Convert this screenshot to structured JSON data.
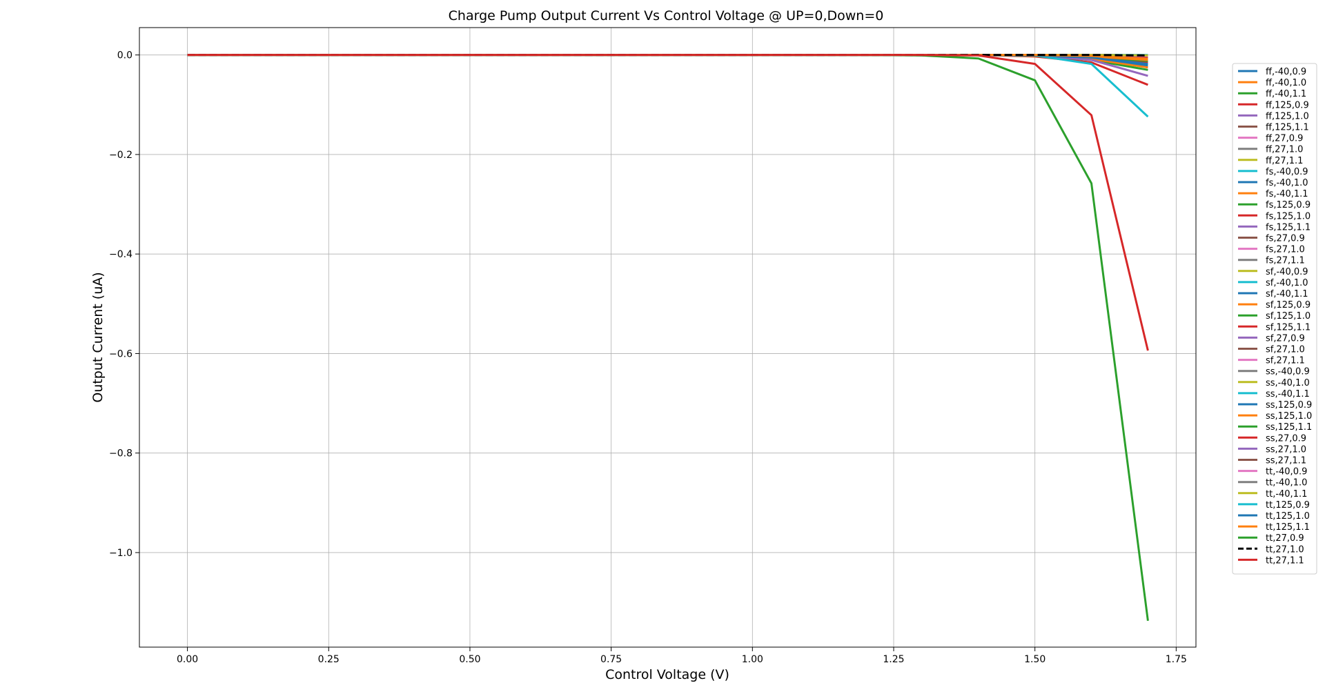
{
  "chart_data": {
    "type": "line",
    "title": "Charge Pump Output Current Vs Control Voltage @ UP=0,Down=0",
    "xlabel": "Control Voltage (V)",
    "ylabel": "Output Current (uA)",
    "xlim": [
      -0.085,
      1.785
    ],
    "ylim": [
      -1.19,
      0.055
    ],
    "xticks": [
      0.0,
      0.25,
      0.5,
      0.75,
      1.0,
      1.25,
      1.5,
      1.75
    ],
    "yticks": [
      0.0,
      -0.2,
      -0.4,
      -0.6,
      -0.8,
      -1.0
    ],
    "xtick_labels": [
      "0.00",
      "0.25",
      "0.50",
      "0.75",
      "1.00",
      "1.25",
      "1.50",
      "1.75"
    ],
    "ytick_labels": [
      "0.0",
      "−0.2",
      "−0.4",
      "−0.6",
      "−0.8",
      "−1.0"
    ],
    "grid": true,
    "legend_position": "right, outside plot",
    "x": [
      0.0,
      0.1,
      0.2,
      0.3,
      0.4,
      0.5,
      0.6,
      0.7,
      0.8,
      0.9,
      1.0,
      1.1,
      1.2,
      1.3,
      1.4,
      1.5,
      1.6,
      1.7
    ],
    "series": [
      {
        "name": "ff,-40,0.9",
        "color": "#1f77b4",
        "dash": "solid",
        "values": [
          0,
          0,
          0,
          0,
          0,
          0,
          0,
          0,
          0,
          0,
          0,
          0,
          0,
          0,
          0,
          0,
          -0.001,
          -0.004
        ]
      },
      {
        "name": "ff,-40,1.0",
        "color": "#ff7f0e",
        "dash": "solid",
        "values": [
          0,
          0,
          0,
          0,
          0,
          0,
          0,
          0,
          0,
          0,
          0,
          0,
          0,
          0,
          0,
          0,
          0,
          -0.002
        ]
      },
      {
        "name": "ff,-40,1.1",
        "color": "#2ca02c",
        "dash": "solid",
        "values": [
          0,
          0,
          0,
          0,
          0,
          0,
          0,
          0,
          0,
          0,
          0,
          0,
          0,
          0,
          0,
          0,
          0,
          -0.001
        ]
      },
      {
        "name": "ff,125,0.9",
        "color": "#d62728",
        "dash": "solid",
        "values": [
          0,
          0,
          0,
          0,
          0,
          0,
          0,
          0,
          0,
          0,
          0,
          0,
          0,
          0,
          0,
          -0.003,
          -0.015,
          -0.06
        ]
      },
      {
        "name": "ff,125,1.0",
        "color": "#9467bd",
        "dash": "solid",
        "values": [
          0,
          0,
          0,
          0,
          0,
          0,
          0,
          0,
          0,
          0,
          0,
          0,
          0,
          0,
          0,
          -0.001,
          -0.006,
          -0.025
        ]
      },
      {
        "name": "ff,125,1.1",
        "color": "#8c564b",
        "dash": "solid",
        "values": [
          0,
          0,
          0,
          0,
          0,
          0,
          0,
          0,
          0,
          0,
          0,
          0,
          0,
          0,
          0,
          0,
          -0.003,
          -0.012
        ]
      },
      {
        "name": "ff,27,0.9",
        "color": "#e377c2",
        "dash": "solid",
        "values": [
          0,
          0,
          0,
          0,
          0,
          0,
          0,
          0,
          0,
          0,
          0,
          0,
          0,
          0,
          0,
          0,
          -0.002,
          -0.008
        ]
      },
      {
        "name": "ff,27,1.0",
        "color": "#7f7f7f",
        "dash": "solid",
        "values": [
          0,
          0,
          0,
          0,
          0,
          0,
          0,
          0,
          0,
          0,
          0,
          0,
          0,
          0,
          0,
          0,
          -0.001,
          -0.005
        ]
      },
      {
        "name": "ff,27,1.1",
        "color": "#bcbd22",
        "dash": "solid",
        "values": [
          0,
          0,
          0,
          0,
          0,
          0,
          0,
          0,
          0,
          0,
          0,
          0,
          0,
          0,
          0,
          0,
          0,
          -0.003
        ]
      },
      {
        "name": "fs,-40,0.9",
        "color": "#17becf",
        "dash": "solid",
        "values": [
          0,
          0,
          0,
          0,
          0,
          0,
          0,
          0,
          0,
          0,
          0,
          0,
          0,
          0,
          0,
          0,
          0,
          -0.002
        ]
      },
      {
        "name": "fs,-40,1.0",
        "color": "#1f77b4",
        "dash": "solid",
        "values": [
          0,
          0,
          0,
          0,
          0,
          0,
          0,
          0,
          0,
          0,
          0,
          0,
          0,
          0,
          0,
          0,
          0,
          -0.001
        ]
      },
      {
        "name": "fs,-40,1.1",
        "color": "#ff7f0e",
        "dash": "solid",
        "values": [
          0,
          0,
          0,
          0,
          0,
          0,
          0,
          0,
          0,
          0,
          0,
          0,
          0,
          0,
          0,
          0,
          0,
          -0.001
        ]
      },
      {
        "name": "fs,125,0.9",
        "color": "#2ca02c",
        "dash": "solid",
        "values": [
          0,
          0,
          0,
          0,
          0,
          0,
          0,
          0,
          0,
          0,
          0,
          0,
          0,
          0,
          0,
          -0.002,
          -0.01,
          -0.03
        ]
      },
      {
        "name": "fs,125,1.0",
        "color": "#d62728",
        "dash": "solid",
        "values": [
          0,
          0,
          0,
          0,
          0,
          0,
          0,
          0,
          0,
          0,
          0,
          0,
          0,
          0,
          0,
          -0.001,
          -0.005,
          -0.015
        ]
      },
      {
        "name": "fs,125,1.1",
        "color": "#9467bd",
        "dash": "solid",
        "values": [
          0,
          0,
          0,
          0,
          0,
          0,
          0,
          0,
          0,
          0,
          0,
          0,
          0,
          0,
          0,
          0,
          -0.002,
          -0.008
        ]
      },
      {
        "name": "fs,27,0.9",
        "color": "#8c564b",
        "dash": "solid",
        "values": [
          0,
          0,
          0,
          0,
          0,
          0,
          0,
          0,
          0,
          0,
          0,
          0,
          0,
          0,
          0,
          0,
          -0.001,
          -0.004
        ]
      },
      {
        "name": "fs,27,1.0",
        "color": "#e377c2",
        "dash": "solid",
        "values": [
          0,
          0,
          0,
          0,
          0,
          0,
          0,
          0,
          0,
          0,
          0,
          0,
          0,
          0,
          0,
          0,
          0,
          -0.002
        ]
      },
      {
        "name": "fs,27,1.1",
        "color": "#7f7f7f",
        "dash": "solid",
        "values": [
          0,
          0,
          0,
          0,
          0,
          0,
          0,
          0,
          0,
          0,
          0,
          0,
          0,
          0,
          0,
          0,
          0,
          -0.001
        ]
      },
      {
        "name": "sf,-40,0.9",
        "color": "#bcbd22",
        "dash": "solid",
        "values": [
          0,
          0,
          0,
          0,
          0,
          0,
          0,
          0,
          0,
          0,
          0,
          0,
          0,
          0,
          0,
          0,
          0,
          -0.002
        ]
      },
      {
        "name": "sf,-40,1.0",
        "color": "#17becf",
        "dash": "solid",
        "values": [
          0,
          0,
          0,
          0,
          0,
          0,
          0,
          0,
          0,
          0,
          0,
          0,
          0,
          0,
          0,
          0,
          0,
          -0.001
        ]
      },
      {
        "name": "sf,-40,1.1",
        "color": "#1f77b4",
        "dash": "solid",
        "values": [
          0,
          0,
          0,
          0,
          0,
          0,
          0,
          0,
          0,
          0,
          0,
          0,
          0,
          0,
          0,
          0,
          0,
          -0.001
        ]
      },
      {
        "name": "sf,125,0.9",
        "color": "#ff7f0e",
        "dash": "solid",
        "values": [
          0,
          0,
          0,
          0,
          0,
          0,
          0,
          0,
          0,
          0,
          0,
          0,
          0,
          0,
          0,
          -0.002,
          -0.008,
          -0.025
        ]
      },
      {
        "name": "sf,125,1.0",
        "color": "#2ca02c",
        "dash": "solid",
        "values": [
          0,
          0,
          0,
          0,
          0,
          0,
          0,
          0,
          0,
          0,
          0,
          0,
          0,
          0,
          0,
          -0.001,
          -0.004,
          -0.012
        ]
      },
      {
        "name": "sf,125,1.1",
        "color": "#d62728",
        "dash": "solid",
        "values": [
          0,
          0,
          0,
          0,
          0,
          0,
          0,
          0,
          0,
          0,
          0,
          0,
          0,
          0,
          0,
          0,
          -0.002,
          -0.006
        ]
      },
      {
        "name": "sf,27,0.9",
        "color": "#9467bd",
        "dash": "solid",
        "values": [
          0,
          0,
          0,
          0,
          0,
          0,
          0,
          0,
          0,
          0,
          0,
          0,
          0,
          0,
          0,
          -0.001,
          -0.01,
          -0.042
        ]
      },
      {
        "name": "sf,27,1.0",
        "color": "#8c564b",
        "dash": "solid",
        "values": [
          0,
          0,
          0,
          0,
          0,
          0,
          0,
          0,
          0,
          0,
          0,
          0,
          0,
          0,
          0,
          0,
          -0.003,
          -0.01
        ]
      },
      {
        "name": "sf,27,1.1",
        "color": "#e377c2",
        "dash": "solid",
        "values": [
          0,
          0,
          0,
          0,
          0,
          0,
          0,
          0,
          0,
          0,
          0,
          0,
          0,
          0,
          0,
          0,
          -0.001,
          -0.005
        ]
      },
      {
        "name": "ss,-40,0.9",
        "color": "#7f7f7f",
        "dash": "solid",
        "values": [
          0,
          0,
          0,
          0,
          0,
          0,
          0,
          0,
          0,
          0,
          0,
          0,
          0,
          0,
          0,
          0,
          0,
          -0.001
        ]
      },
      {
        "name": "ss,-40,1.0",
        "color": "#bcbd22",
        "dash": "solid",
        "values": [
          0,
          0,
          0,
          0,
          0,
          0,
          0,
          0,
          0,
          0,
          0,
          0,
          0,
          0,
          0,
          0,
          0,
          -0.001
        ]
      },
      {
        "name": "ss,-40,1.1",
        "color": "#17becf",
        "dash": "solid",
        "values": [
          0,
          0,
          0,
          0,
          0,
          0,
          0,
          0,
          0,
          0,
          0,
          0,
          0,
          0,
          0,
          0,
          0,
          0
        ]
      },
      {
        "name": "ss,125,0.9",
        "color": "#1f77b4",
        "dash": "solid",
        "values": [
          0,
          0,
          0,
          0,
          0,
          0,
          0,
          0,
          0,
          0,
          0,
          0,
          0,
          0,
          0,
          -0.001,
          -0.005,
          -0.018
        ]
      },
      {
        "name": "ss,125,1.0",
        "color": "#ff7f0e",
        "dash": "solid",
        "values": [
          0,
          0,
          0,
          0,
          0,
          0,
          0,
          0,
          0,
          0,
          0,
          0,
          0,
          0,
          0,
          0,
          -0.003,
          -0.01
        ]
      },
      {
        "name": "ss,125,1.1",
        "color": "#2ca02c",
        "dash": "solid",
        "values": [
          0,
          0,
          0,
          0,
          0,
          0,
          0,
          0,
          0,
          0,
          0,
          0,
          0,
          0,
          0,
          0,
          -0.001,
          -0.005
        ]
      },
      {
        "name": "ss,27,0.9",
        "color": "#d62728",
        "dash": "solid",
        "values": [
          0,
          0,
          0,
          0,
          0,
          0,
          0,
          0,
          0,
          0,
          0,
          0,
          0,
          0,
          0,
          0,
          -0.001,
          -0.004
        ]
      },
      {
        "name": "ss,27,1.0",
        "color": "#9467bd",
        "dash": "solid",
        "values": [
          0,
          0,
          0,
          0,
          0,
          0,
          0,
          0,
          0,
          0,
          0,
          0,
          0,
          0,
          0,
          0,
          0,
          -0.002
        ]
      },
      {
        "name": "ss,27,1.1",
        "color": "#8c564b",
        "dash": "solid",
        "values": [
          0,
          0,
          0,
          0,
          0,
          0,
          0,
          0,
          0,
          0,
          0,
          0,
          0,
          0,
          0,
          0,
          0,
          -0.001
        ]
      },
      {
        "name": "tt,-40,0.9",
        "color": "#e377c2",
        "dash": "solid",
        "values": [
          0,
          0,
          0,
          0,
          0,
          0,
          0,
          0,
          0,
          0,
          0,
          0,
          0,
          0,
          0,
          0,
          0,
          -0.002
        ]
      },
      {
        "name": "tt,-40,1.0",
        "color": "#7f7f7f",
        "dash": "solid",
        "values": [
          0,
          0,
          0,
          0,
          0,
          0,
          0,
          0,
          0,
          0,
          0,
          0,
          0,
          0,
          0,
          0,
          0,
          -0.001
        ]
      },
      {
        "name": "tt,-40,1.1",
        "color": "#bcbd22",
        "dash": "solid",
        "values": [
          0,
          0,
          0,
          0,
          0,
          0,
          0,
          0,
          0,
          0,
          0,
          0,
          0,
          0,
          0,
          0,
          0,
          -0.001
        ]
      },
      {
        "name": "tt,125,0.9",
        "color": "#17becf",
        "dash": "solid",
        "values": [
          0,
          0,
          0,
          0,
          0,
          0,
          0,
          0,
          0,
          0,
          0,
          0,
          0,
          0,
          0,
          -0.001,
          -0.018,
          -0.124
        ]
      },
      {
        "name": "tt,125,1.0",
        "color": "#1f77b4",
        "dash": "solid",
        "values": [
          0,
          0,
          0,
          0,
          0,
          0,
          0,
          0,
          0,
          0,
          0,
          0,
          0,
          0,
          0,
          -0.001,
          -0.005,
          -0.021
        ]
      },
      {
        "name": "tt,125,1.1",
        "color": "#ff7f0e",
        "dash": "solid",
        "values": [
          0,
          0,
          0,
          0,
          0,
          0,
          0,
          0,
          0,
          0,
          0,
          0,
          0,
          0,
          0,
          0,
          -0.002,
          -0.008
        ]
      },
      {
        "name": "tt,27,0.9",
        "color": "#2ca02c",
        "dash": "solid",
        "values": [
          0,
          0,
          0,
          0,
          0,
          0,
          0,
          0,
          0,
          0,
          0,
          0,
          0,
          -0.001,
          -0.007,
          -0.051,
          -0.258,
          -1.137
        ]
      },
      {
        "name": "tt,27,1.0",
        "color": "#000000",
        "dash": "dashed",
        "values": [
          0,
          0,
          0,
          0,
          0,
          0,
          0,
          0,
          0,
          0,
          0,
          0,
          0,
          0,
          0,
          0,
          0,
          -0.001
        ]
      },
      {
        "name": "tt,27,1.1",
        "color": "#d62728",
        "dash": "solid",
        "values": [
          0,
          0,
          0,
          0,
          0,
          0,
          0,
          0,
          0,
          0,
          0,
          0,
          0,
          0,
          -0.001,
          -0.018,
          -0.121,
          -0.594
        ]
      }
    ]
  }
}
